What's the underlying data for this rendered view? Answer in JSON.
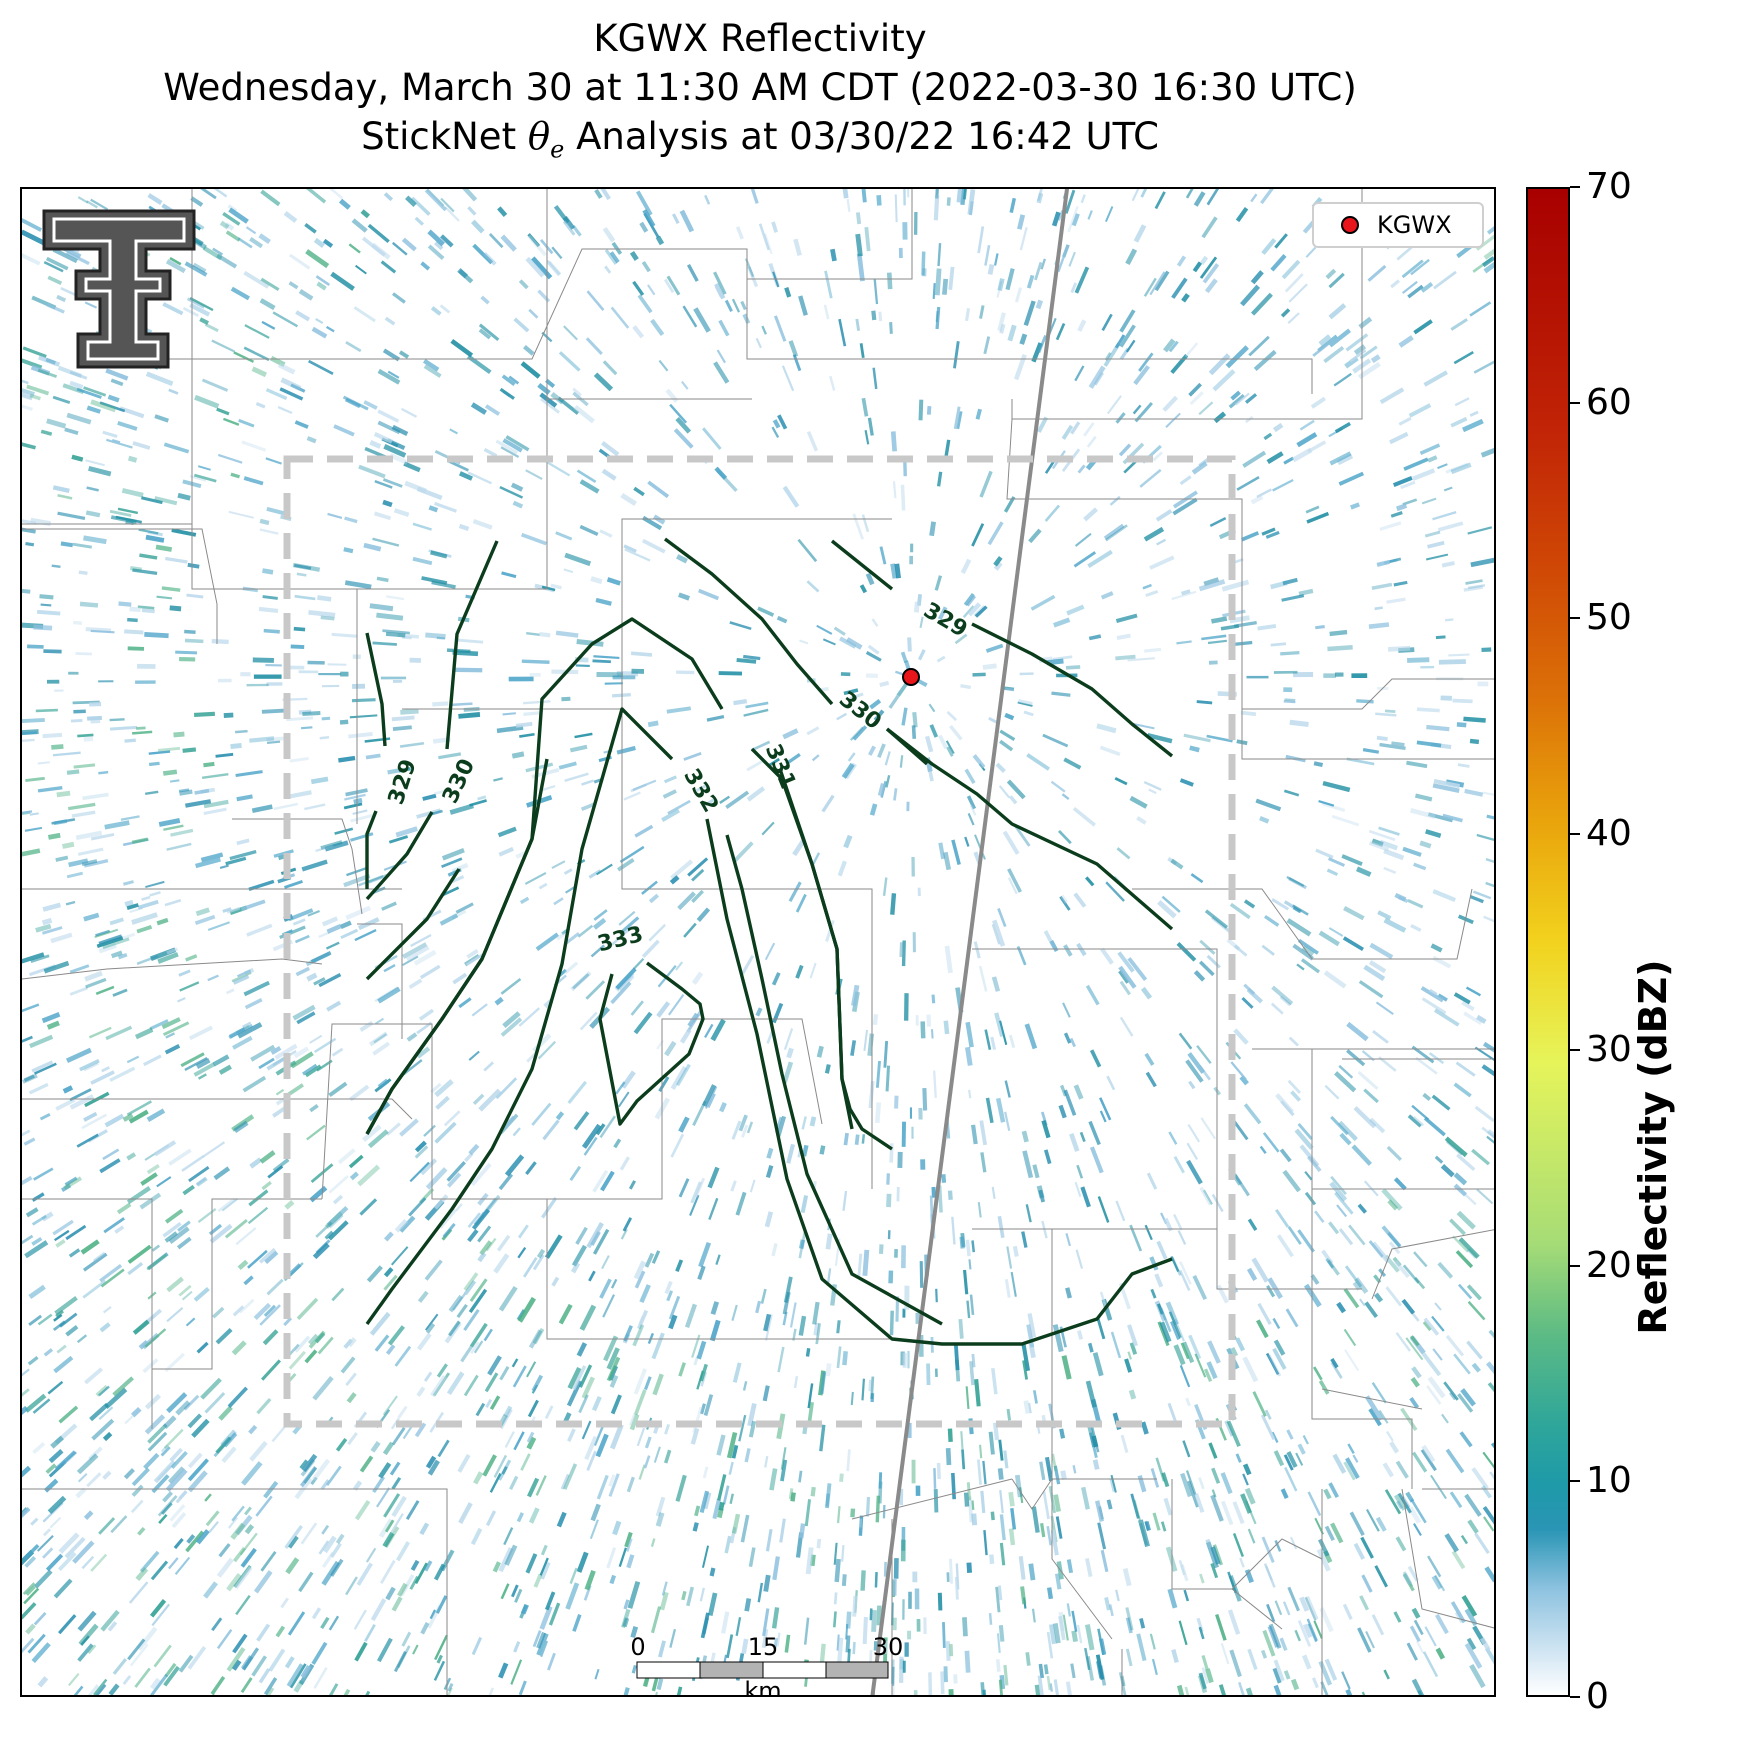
{
  "header": {
    "title_line1": "KGWX Reflectivity",
    "title_line2": "Wednesday, March 30 at 11:30 AM CDT (2022-03-30 16:30 UTC)",
    "title_line3_prefix": "StickNet ",
    "title_line3_theta": "θ",
    "title_line3_sub": "e",
    "title_line3_suffix": " Analysis at 03/30/22 16:42 UTC"
  },
  "legend": {
    "label": "KGWX",
    "marker_color": "#e8151b"
  },
  "logo": {
    "text": "Texas Tech Double T"
  },
  "contours": {
    "color": "#0b3d1d",
    "labels": [
      "329",
      "330",
      "331",
      "332",
      "333",
      "329",
      "330"
    ]
  },
  "scale_bar": {
    "ticks": [
      "0",
      "15",
      "30"
    ],
    "unit": "km"
  },
  "colorbar": {
    "label": "Reflectivity (dBZ)",
    "min": 0,
    "max": 70,
    "ticks": [
      "0",
      "10",
      "20",
      "30",
      "40",
      "50",
      "60",
      "70"
    ]
  },
  "colors": {
    "analysis_box": "#c8c8c8",
    "county_lines": "#8a8a8a",
    "road": "#8a8a8a"
  }
}
